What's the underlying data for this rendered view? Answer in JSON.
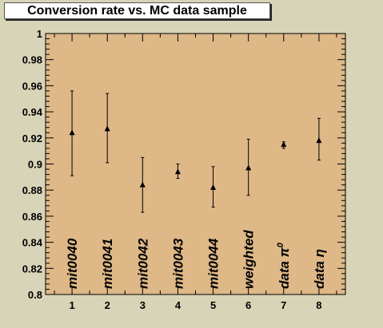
{
  "chart_data": {
    "type": "scatter",
    "title": "Conversion rate vs. MC data sample",
    "xlabel": "",
    "ylabel": "",
    "xlim": [
      0.25,
      8.75
    ],
    "ylim": [
      0.8,
      1.0
    ],
    "x_ticks": [
      1,
      2,
      3,
      4,
      5,
      6,
      7,
      8
    ],
    "y_ticks": [
      0.8,
      0.82,
      0.84,
      0.86,
      0.88,
      0.9,
      0.92,
      0.94,
      0.96,
      0.98,
      1
    ],
    "y_tick_labels": [
      "0.8",
      "0.82",
      "0.84",
      "0.86",
      "0.88",
      "0.9",
      "0.92",
      "0.94",
      "0.96",
      "0.98",
      "1"
    ],
    "points": [
      {
        "x": 1,
        "y": 0.924,
        "err_low": 0.891,
        "err_high": 0.956,
        "label": "mit0040"
      },
      {
        "x": 2,
        "y": 0.927,
        "err_low": 0.901,
        "err_high": 0.954,
        "label": "mit0041"
      },
      {
        "x": 3,
        "y": 0.884,
        "err_low": 0.863,
        "err_high": 0.905,
        "label": "mit0042"
      },
      {
        "x": 4,
        "y": 0.894,
        "err_low": 0.889,
        "err_high": 0.9,
        "label": "mit0043"
      },
      {
        "x": 5,
        "y": 0.882,
        "err_low": 0.867,
        "err_high": 0.898,
        "label": "mit0044"
      },
      {
        "x": 6,
        "y": 0.897,
        "err_low": 0.876,
        "err_high": 0.919,
        "label": "weighted"
      },
      {
        "x": 7,
        "y": 0.915,
        "err_low": 0.912,
        "err_high": 0.917,
        "label": "data π",
        "label_sup": "0"
      },
      {
        "x": 8,
        "y": 0.918,
        "err_low": 0.903,
        "err_high": 0.935,
        "label": "data η"
      }
    ],
    "grid": false,
    "colors": {
      "frame_fill": "#deb887",
      "canvas": "#d8d4b8",
      "marker": "#000000"
    }
  }
}
